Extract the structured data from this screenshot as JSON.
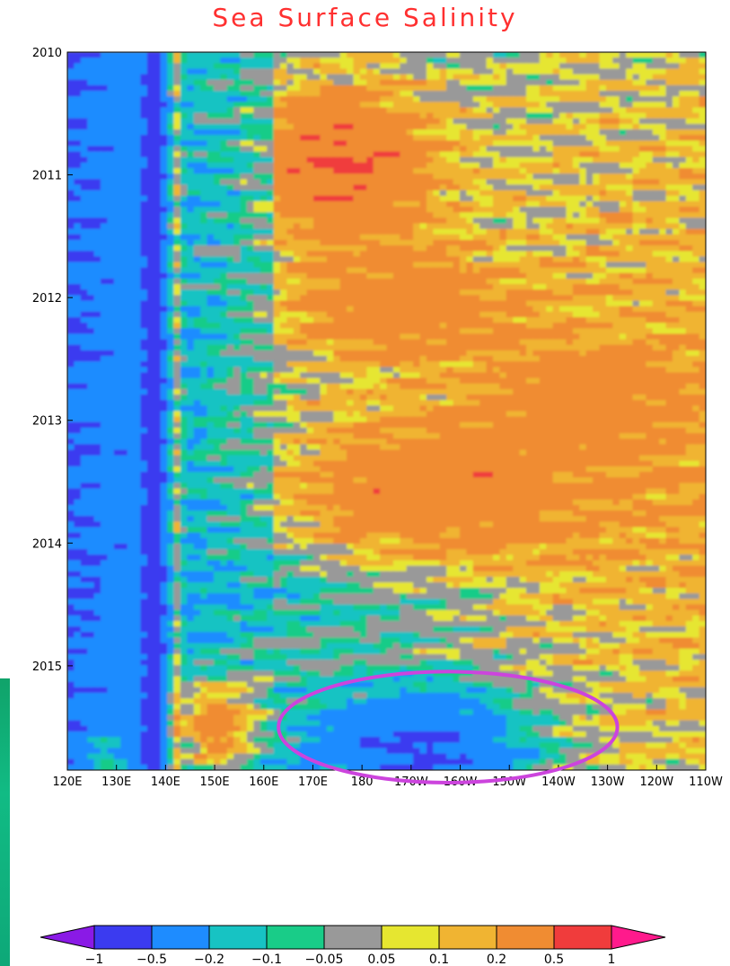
{
  "chart_data": {
    "type": "heatmap",
    "title": "Sea Surface Salinity",
    "xlabel": "",
    "ylabel": "",
    "x_ticks": [
      "120E",
      "130E",
      "140E",
      "150E",
      "160E",
      "170E",
      "180",
      "170W",
      "160W",
      "150W",
      "140W",
      "130W",
      "120W",
      "110W"
    ],
    "y_ticks": [
      "2010",
      "2011",
      "2012",
      "2013",
      "2014",
      "2015"
    ],
    "xlim": [
      "120E",
      "110W"
    ],
    "ylim": [
      2010,
      2015.85
    ],
    "colorbar": {
      "levels": [
        "-1",
        "-0.5",
        "-0.2",
        "-0.1",
        "-0.05",
        "0.05",
        "0.1",
        "0.2",
        "0.5",
        "1"
      ],
      "colors": [
        "#8a1ae6",
        "#3b3bf0",
        "#1e8cff",
        "#17c3c3",
        "#19cc88",
        "#999999",
        "#e6e630",
        "#f0b432",
        "#f08c32",
        "#f03c3c",
        "#ff1a8c"
      ]
    },
    "annotation": {
      "shape": "ellipse",
      "color": "#cc44dd",
      "x_range": [
        "163E",
        "128W"
      ],
      "y_range": [
        2015.15,
        2015.85
      ]
    }
  }
}
